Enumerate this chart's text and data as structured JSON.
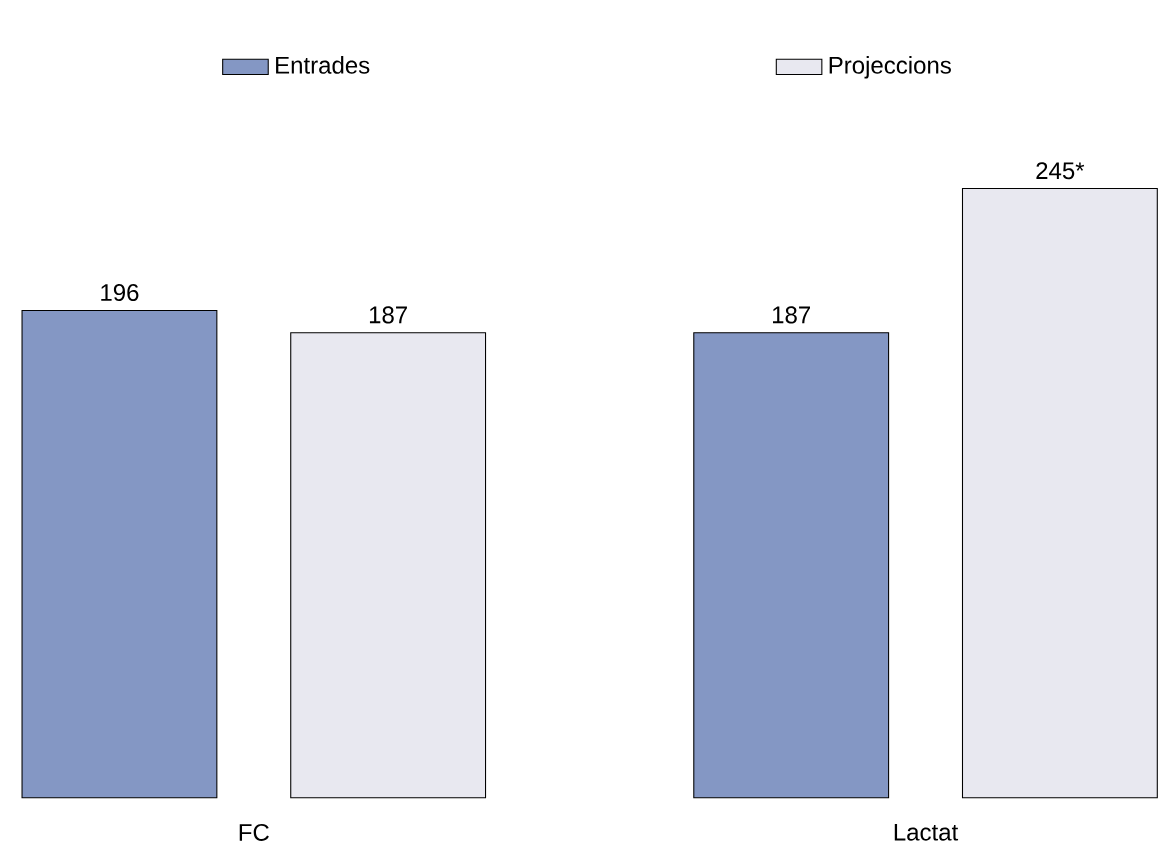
{
  "chart_data": {
    "type": "bar",
    "categories": [
      "FC",
      "Lactat"
    ],
    "series": [
      {
        "name": "Entrades",
        "color": "#8497c4",
        "values": [
          196,
          187
        ],
        "value_labels": [
          "196",
          "187"
        ]
      },
      {
        "name": "Projeccions",
        "color": "#e8e8f0",
        "values": [
          187,
          245
        ],
        "value_labels": [
          "187",
          "245*"
        ]
      }
    ],
    "legend": "top"
  }
}
